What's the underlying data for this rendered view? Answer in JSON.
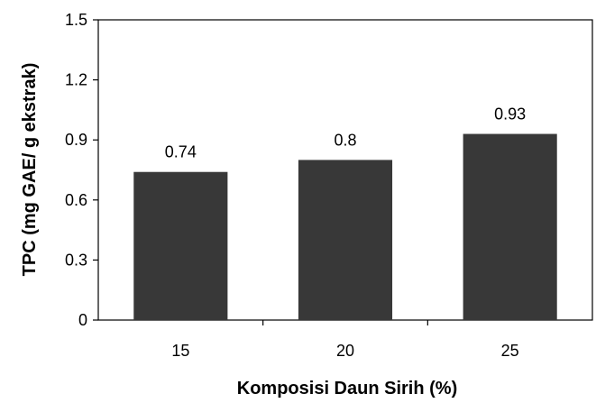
{
  "chart_data": {
    "type": "bar",
    "categories": [
      "15",
      "20",
      "25"
    ],
    "values": [
      0.74,
      0.8,
      0.93
    ],
    "data_labels": [
      "0.74",
      "0.8",
      "0.93"
    ],
    "title": "",
    "xlabel": "Komposisi Daun Sirih (%)",
    "ylabel": "TPC (mg GAE/ g ekstrak)",
    "ylim": [
      0,
      1.5
    ],
    "yticks": [
      0,
      0.3,
      0.6,
      0.9,
      1.2,
      1.5
    ],
    "ytick_labels": [
      "0",
      "0.3",
      "0.6",
      "0.9",
      "1.2",
      "1.5"
    ],
    "grid": false,
    "legend": "none",
    "bar_color": "#383838"
  }
}
